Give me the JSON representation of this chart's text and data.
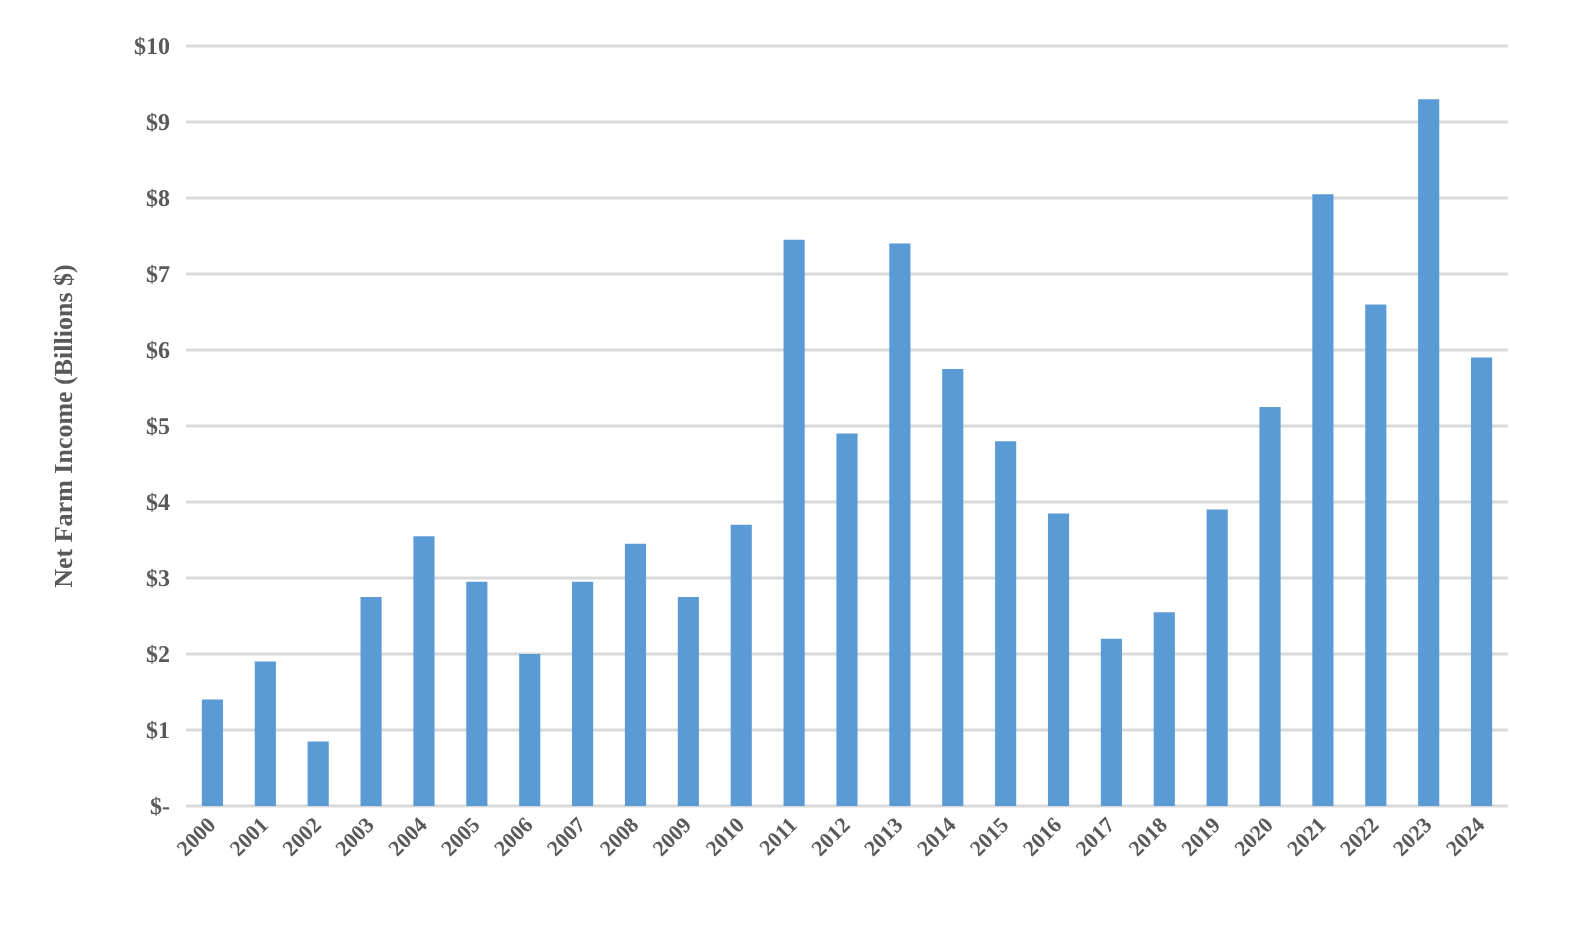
{
  "chart_data": {
    "type": "bar",
    "ylabel": "Net Farm Income (Billions $)",
    "categories": [
      "2000",
      "2001",
      "2002",
      "2003",
      "2004",
      "2005",
      "2006",
      "2007",
      "2008",
      "2009",
      "2010",
      "2011",
      "2012",
      "2013",
      "2014",
      "2015",
      "2016",
      "2017",
      "2018",
      "2019",
      "2020",
      "2021",
      "2022",
      "2023",
      "2024"
    ],
    "values": [
      1.4,
      1.9,
      0.85,
      2.75,
      3.55,
      2.95,
      2.0,
      2.95,
      3.45,
      2.75,
      3.7,
      7.45,
      4.9,
      7.4,
      5.75,
      4.8,
      3.85,
      2.2,
      2.55,
      3.9,
      5.25,
      8.05,
      6.6,
      9.3,
      5.9
    ],
    "color": "#5b9bd5",
    "ylim": [
      0,
      10
    ],
    "yticks": [
      {
        "value": 0,
        "label": "$-"
      },
      {
        "value": 1,
        "label": "$1"
      },
      {
        "value": 2,
        "label": "$2"
      },
      {
        "value": 3,
        "label": "$3"
      },
      {
        "value": 4,
        "label": "$4"
      },
      {
        "value": 5,
        "label": "$5"
      },
      {
        "value": 6,
        "label": "$6"
      },
      {
        "value": 7,
        "label": "$7"
      },
      {
        "value": 8,
        "label": "$8"
      },
      {
        "value": 9,
        "label": "$9"
      },
      {
        "value": 10,
        "label": "$10"
      }
    ],
    "grid": "y"
  }
}
